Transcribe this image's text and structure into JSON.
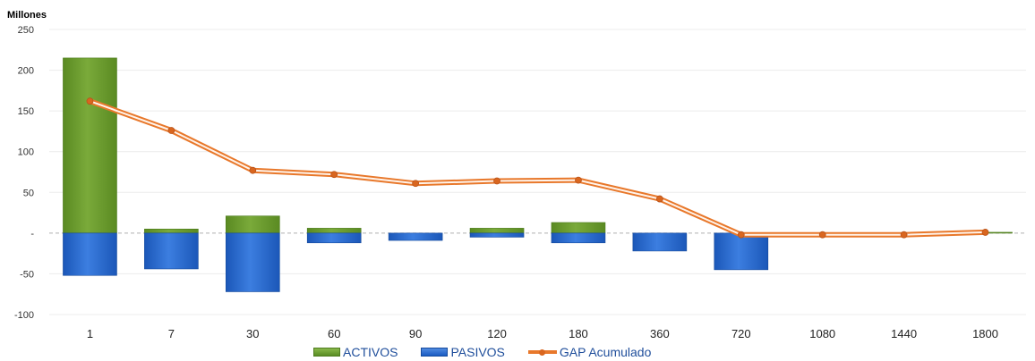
{
  "chart_data": {
    "type": "bar",
    "title": "",
    "ylabel": "Millones",
    "xlabel": "",
    "ylim": [
      -100,
      250
    ],
    "yticks": [
      {
        "value": 250,
        "label": "250"
      },
      {
        "value": 200,
        "label": "200"
      },
      {
        "value": 150,
        "label": "150"
      },
      {
        "value": 100,
        "label": "100"
      },
      {
        "value": 50,
        "label": "50"
      },
      {
        "value": 0,
        "label": "-"
      },
      {
        "value": -50,
        "label": "-50"
      },
      {
        "value": -100,
        "label": "-100"
      }
    ],
    "categories": [
      "1",
      "7",
      "30",
      "60",
      "90",
      "120",
      "180",
      "360",
      "720",
      "1080",
      "1440",
      "1800"
    ],
    "series": [
      {
        "name": "ACTIVOS",
        "kind": "bar",
        "color": "#6a9a2e",
        "values": [
          215,
          5,
          21,
          6,
          0,
          6,
          13,
          0,
          0,
          0,
          0,
          1
        ]
      },
      {
        "name": "PASIVOS",
        "kind": "bar",
        "color": "#1f5fc4",
        "values": [
          -52,
          -44,
          -72,
          -12,
          -9,
          -5,
          -12,
          -22,
          -45,
          0,
          0,
          0
        ]
      },
      {
        "name": "GAP Acumulado",
        "kind": "line",
        "color": "#e8782b",
        "values": [
          162,
          126,
          77,
          72,
          61,
          64,
          65,
          42,
          -2,
          -2,
          -2,
          1
        ]
      }
    ],
    "grid": true,
    "legend_position": "bottom"
  }
}
